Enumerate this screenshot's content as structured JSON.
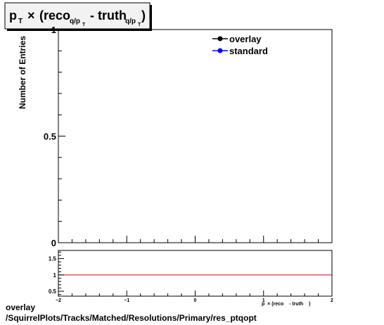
{
  "chart_data": [
    {
      "type": "line",
      "title": {
        "base": "p",
        "base_sub": "T",
        "times": "×",
        "reco": "(reco",
        "reco_sub": "q/p",
        "reco_subsub": "T",
        "minus": " - truth",
        "truth_sub": "q/p",
        "truth_subsub": "T",
        "close": ")"
      },
      "ylabel": "Number of Entries",
      "xlabel": "p  × (reco    - truth    )",
      "ylim": [
        0,
        1.0
      ],
      "xlim": [
        -2,
        2
      ],
      "yticks": [
        {
          "value": 0,
          "label": "0"
        },
        {
          "value": 0.5,
          "label": "0.5"
        },
        {
          "value": 1.0,
          "label": "1"
        }
      ],
      "legend_position": "top-right",
      "series": [
        {
          "name": "overlay",
          "color": "#000000",
          "x": [],
          "y": []
        },
        {
          "name": "standard",
          "color": "#0000ff",
          "x": [],
          "y": []
        }
      ]
    },
    {
      "type": "line",
      "xlim": [
        -2,
        2
      ],
      "ylim": [
        0.35,
        1.75
      ],
      "xticks": [
        {
          "value": -2,
          "label": "−2"
        },
        {
          "value": -1,
          "label": "−1"
        },
        {
          "value": 0,
          "label": "0"
        },
        {
          "value": 1,
          "label": "1"
        },
        {
          "value": 2,
          "label": "2"
        }
      ],
      "yticks": [
        {
          "value": 0.5,
          "label": "0.5"
        },
        {
          "value": 1.0,
          "label": "1"
        },
        {
          "value": 1.5,
          "label": "1.5"
        }
      ],
      "reference_line": {
        "y": 1.0,
        "color": "#cc0000"
      }
    }
  ],
  "footer": {
    "line1": "overlay",
    "line2": "/SquirrelPlots/Tracks/Matched/Resolutions/Primary/res_ptqopt"
  }
}
